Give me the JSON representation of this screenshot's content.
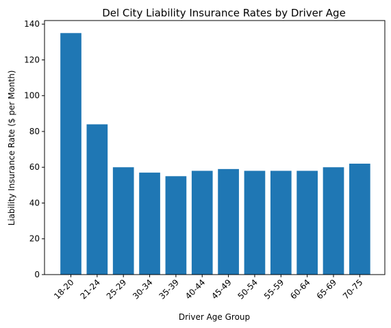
{
  "chart_data": {
    "type": "bar",
    "title": "Del City Liability Insurance Rates by Driver Age",
    "xlabel": "Driver Age Group",
    "ylabel": "Liability Insurance Rate ($ per Month)",
    "categories": [
      "18-20",
      "21-24",
      "25-29",
      "30-34",
      "35-39",
      "40-44",
      "45-49",
      "50-54",
      "55-59",
      "60-64",
      "65-69",
      "70-75"
    ],
    "values": [
      135,
      84,
      60,
      57,
      55,
      58,
      59,
      58,
      58,
      58,
      60,
      62
    ],
    "ylim": [
      0,
      142
    ],
    "yticks": [
      0,
      20,
      40,
      60,
      80,
      100,
      120,
      140
    ],
    "bar_color": "#1f77b4",
    "grid": false,
    "legend": "none"
  }
}
